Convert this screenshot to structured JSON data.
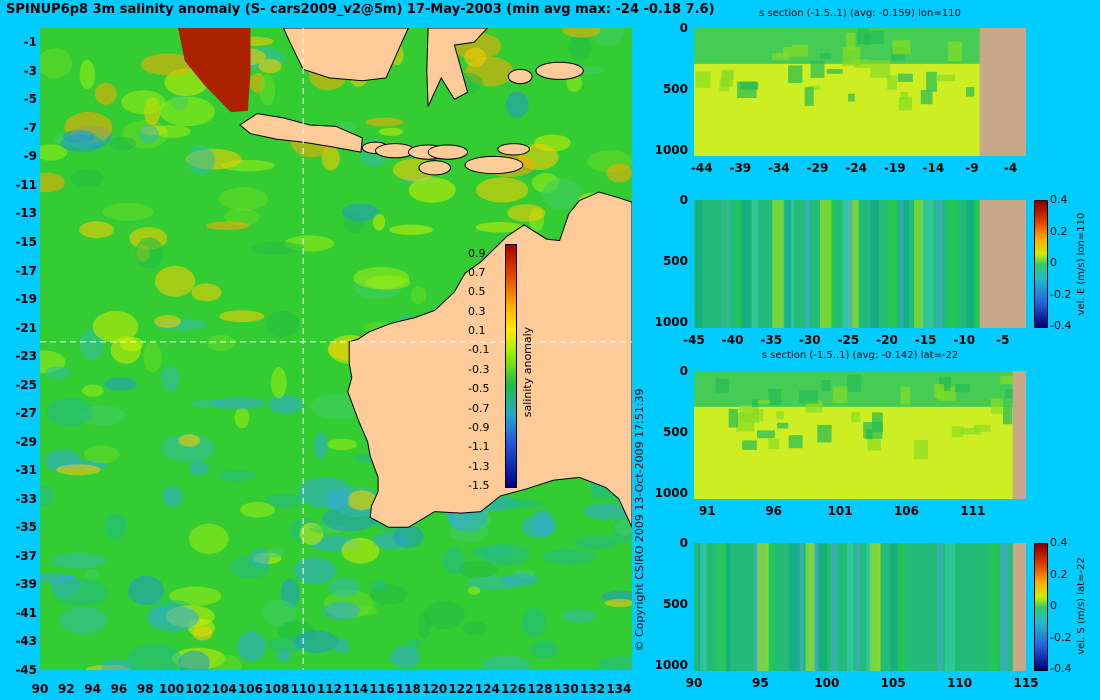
{
  "title": "SPINUP6p8 3m salinity anomaly (S- cars2009_v2@5m) 17-May-2003 (min avg max: -24 -0.18 7.6)",
  "copyright": "© Copyright CSIRO 2009   13-Oct-2009 17:51:39",
  "colors": {
    "background": "#00ccff",
    "land": "#ffcc99",
    "section_land": "#c8a888",
    "guide": "#ffffff"
  },
  "chart_data": [
    {
      "type": "heatmap",
      "name": "map",
      "title": "SPINUP6p8 3m salinity anomaly (S- cars2009_v2@5m) 17-May-2003 (min avg max: -24 -0.18 7.6)",
      "x_ticks": [
        "90",
        "92",
        "94",
        "96",
        "98",
        "100",
        "102",
        "104",
        "106",
        "108",
        "110",
        "112",
        "114",
        "116",
        "118",
        "120",
        "122",
        "124",
        "126",
        "128",
        "130",
        "132",
        "134"
      ],
      "y_ticks": [
        "-1",
        "-3",
        "-5",
        "-7",
        "-9",
        "-11",
        "-13",
        "-15",
        "-17",
        "-19",
        "-21",
        "-23",
        "-25",
        "-27",
        "-29",
        "-31",
        "-33",
        "-35",
        "-37",
        "-39",
        "-41",
        "-43",
        "-45"
      ],
      "xlim": [
        90,
        135
      ],
      "ylim": [
        -45,
        0
      ],
      "guides": {
        "lon": 110,
        "lat": -22
      },
      "colorbar": {
        "label": "salinity anomaly",
        "ticks": [
          "0.9",
          "0.7",
          "0.5",
          "0.3",
          "0.1",
          "-0.1",
          "-0.3",
          "-0.5",
          "-0.7",
          "-0.9",
          "-1.1",
          "-1.3",
          "-1.5"
        ],
        "range": [
          -1.5,
          1.0
        ]
      }
    },
    {
      "type": "heatmap",
      "name": "salinity_section_lon110",
      "title": "s section (-1.5..1) (avg: -0.159) lon=110",
      "x_ticks": [
        "-44",
        "-39",
        "-34",
        "-29",
        "-24",
        "-19",
        "-14",
        "-9",
        "-4"
      ],
      "y_ticks": [
        "0",
        "500",
        "1000"
      ],
      "xlim": [
        -45,
        -2
      ],
      "ylim": [
        1050,
        0
      ]
    },
    {
      "type": "heatmap",
      "name": "velE_section_lon110",
      "title": "",
      "x_ticks": [
        "-45",
        "-40",
        "-35",
        "-30",
        "-25",
        "-20",
        "-15",
        "-10",
        "-5"
      ],
      "y_ticks": [
        "0",
        "500",
        "1000"
      ],
      "xlim": [
        -45,
        -2
      ],
      "ylim": [
        1050,
        0
      ],
      "colorbar": {
        "label": "vel. E (m/s) lon=110",
        "ticks": [
          "0.4",
          "0.2",
          "0",
          "-0.2",
          "-0.4"
        ],
        "range": [
          -0.4,
          0.4
        ]
      }
    },
    {
      "type": "heatmap",
      "name": "salinity_section_lat22",
      "title": "s section (-1.5..1) (avg: -0.142) lat=-22",
      "x_ticks": [
        "91",
        "96",
        "101",
        "106",
        "111"
      ],
      "y_ticks": [
        "0",
        "500",
        "1000"
      ],
      "xlim": [
        90,
        115
      ],
      "ylim": [
        1050,
        0
      ]
    },
    {
      "type": "heatmap",
      "name": "velS_section_lat22",
      "title": "",
      "x_ticks": [
        "90",
        "95",
        "100",
        "105",
        "110",
        "115"
      ],
      "y_ticks": [
        "0",
        "500",
        "1000"
      ],
      "xlim": [
        90,
        115
      ],
      "ylim": [
        1050,
        0
      ],
      "colorbar": {
        "label": "vel. S (m/s) lat=-22",
        "ticks": [
          "0.4",
          "0.2",
          "0",
          "-0.2",
          "-0.4"
        ],
        "range": [
          -0.4,
          0.4
        ]
      }
    }
  ]
}
